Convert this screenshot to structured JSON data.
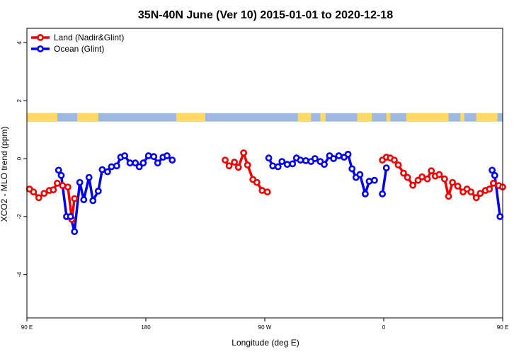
{
  "chart_data": {
    "type": "line",
    "title": "35N-40N June (Ver 10)   2015-01-01 to 2020-12-18",
    "xlabel": "Longitude (deg E)",
    "ylabel": "XCO2 - MLO trend (ppm)",
    "xlim": [
      90,
      450
    ],
    "ylim": [
      -5.5,
      4.5
    ],
    "x_ticks": [
      {
        "value": 90,
        "label": "90 E"
      },
      {
        "value": 180,
        "label": "180"
      },
      {
        "value": 270,
        "label": "90 W"
      },
      {
        "value": 360,
        "label": "0"
      },
      {
        "value": 450,
        "label": "90 E"
      },
      {
        "value": 540,
        "label": "180"
      }
    ],
    "y_ticks": [
      {
        "value": 4,
        "label": "4"
      },
      {
        "value": 2,
        "label": "2"
      },
      {
        "value": 0,
        "label": "0"
      },
      {
        "value": -2,
        "label": "-2"
      },
      {
        "value": -4,
        "label": "-4"
      }
    ],
    "grid": false,
    "legend_position": "top-left",
    "land_ocean_strip": {
      "y_range": [
        1.28,
        1.57
      ],
      "land_color": "#ffd966",
      "ocean_color": "#9db9e0",
      "land_intervals": [
        [
          90,
          113
        ],
        [
          128,
          144
        ],
        [
          203,
          225
        ],
        [
          295,
          305
        ],
        [
          312,
          316
        ],
        [
          340,
          351
        ],
        [
          362,
          365
        ],
        [
          377,
          409
        ],
        [
          418,
          421
        ],
        [
          430,
          446
        ]
      ]
    },
    "series": [
      {
        "name": "Land (Nadir&Glint)",
        "color": "#ee0000",
        "segments": [
          [
            [
              92,
              -1.05
            ],
            [
              95,
              -1.15
            ],
            [
              99,
              -1.35
            ],
            [
              103,
              -1.2
            ],
            [
              107,
              -1.1
            ],
            [
              110,
              -1.08
            ],
            [
              113,
              -0.85
            ],
            [
              117,
              -0.93
            ],
            [
              121,
              -0.98
            ],
            [
              124,
              -2.1
            ],
            [
              126,
              -1.38
            ]
          ],
          [
            [
              240,
              -0.05
            ],
            [
              243,
              -0.25
            ],
            [
              247,
              -0.12
            ],
            [
              250,
              -0.3
            ],
            [
              254,
              0.2
            ],
            [
              257,
              -0.22
            ],
            [
              261,
              -0.72
            ],
            [
              264,
              -0.82
            ],
            [
              268,
              -1.1
            ],
            [
              272,
              -1.15
            ]
          ],
          [
            [
              359,
              -0.05
            ],
            [
              362,
              0.05
            ],
            [
              365,
              0.02
            ],
            [
              368,
              -0.05
            ],
            [
              371,
              -0.22
            ],
            [
              375,
              -0.5
            ],
            [
              378,
              -0.65
            ],
            [
              382,
              -0.92
            ],
            [
              386,
              -0.75
            ],
            [
              389,
              -0.63
            ],
            [
              393,
              -0.7
            ],
            [
              396,
              -0.42
            ],
            [
              399,
              -0.6
            ],
            [
              402,
              -0.55
            ],
            [
              406,
              -0.7
            ],
            [
              409,
              -1.3
            ],
            [
              412,
              -0.82
            ],
            [
              416,
              -0.95
            ],
            [
              420,
              -1.15
            ],
            [
              423,
              -1.05
            ],
            [
              426,
              -1.15
            ],
            [
              430,
              -1.35
            ],
            [
              433,
              -1.2
            ],
            [
              437,
              -1.1
            ],
            [
              440,
              -1.05
            ],
            [
              443,
              -0.85
            ],
            [
              447,
              -0.93
            ],
            [
              450,
              -0.98
            ]
          ]
        ]
      },
      {
        "name": "Ocean (Glint)",
        "color": "#0000ee",
        "segments": [
          [
            [
              114,
              -0.4
            ],
            [
              116,
              -0.58
            ],
            [
              120,
              -2.0
            ],
            [
              123,
              -2.0
            ],
            [
              126,
              -2.52
            ],
            [
              130,
              -0.82
            ],
            [
              133,
              -1.42
            ],
            [
              137,
              -0.65
            ],
            [
              140,
              -1.45
            ],
            [
              144,
              -1.12
            ],
            [
              147,
              -0.38
            ],
            [
              151,
              -0.45
            ],
            [
              154,
              -0.28
            ],
            [
              158,
              -0.25
            ],
            [
              161,
              0.05
            ],
            [
              164,
              0.1
            ],
            [
              168,
              -0.15
            ],
            [
              172,
              -0.15
            ],
            [
              175,
              -0.28
            ],
            [
              178,
              -0.15
            ],
            [
              182,
              0.1
            ],
            [
              186,
              0.07
            ],
            [
              189,
              -0.15
            ],
            [
              193,
              0.05
            ],
            [
              196,
              0.1
            ],
            [
              200,
              -0.05
            ]
          ],
          [
            [
              273,
              0.02
            ],
            [
              276,
              -0.25
            ],
            [
              280,
              -0.28
            ],
            [
              283,
              -0.1
            ],
            [
              287,
              -0.2
            ],
            [
              291,
              -0.18
            ],
            [
              294,
              0.02
            ],
            [
              297,
              -0.05
            ],
            [
              301,
              -0.07
            ],
            [
              305,
              -0.1
            ],
            [
              308,
              0.0
            ],
            [
              312,
              -0.1
            ],
            [
              315,
              -0.2
            ],
            [
              319,
              0.1
            ],
            [
              322,
              0.0
            ],
            [
              326,
              0.1
            ],
            [
              330,
              0.05
            ],
            [
              333,
              0.15
            ],
            [
              336,
              -0.35
            ],
            [
              339,
              -0.65
            ],
            [
              342,
              -0.55
            ],
            [
              346,
              -1.22
            ],
            [
              349,
              -0.78
            ],
            [
              353,
              -0.75
            ]
          ],
          [
            [
              359,
              -1.22
            ],
            [
              362,
              -0.32
            ]
          ],
          [
            [
              442,
              -0.4
            ],
            [
              444,
              -0.58
            ],
            [
              448,
              -2.0
            ]
          ]
        ]
      }
    ],
    "repeat_offset": 270
  }
}
